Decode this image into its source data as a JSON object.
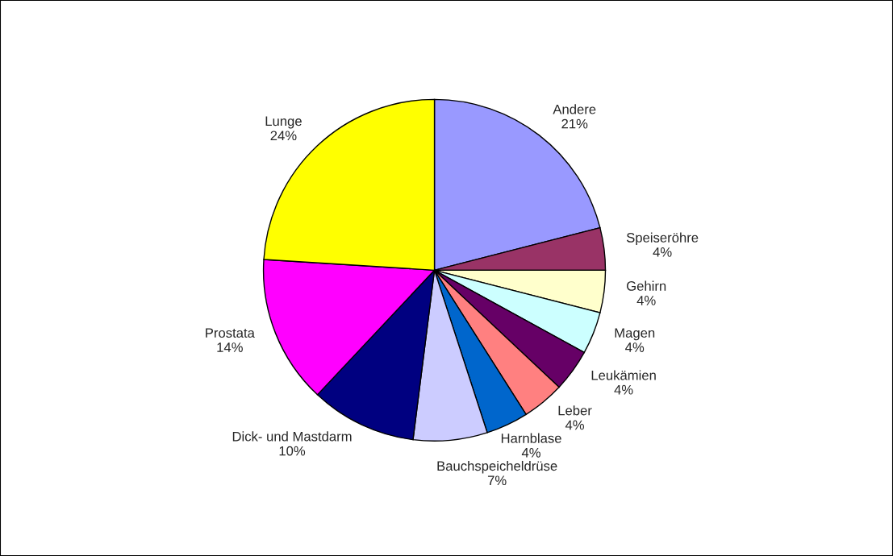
{
  "chart_data": {
    "type": "pie",
    "categories": [
      "Andere",
      "Speiseröhre",
      "Gehirn",
      "Magen",
      "Leukämien",
      "Leber",
      "Harnblase",
      "Bauchspeicheldrüse",
      "Dick- und Mastdarm",
      "Prostata",
      "Lunge"
    ],
    "values": [
      21,
      4,
      4,
      4,
      4,
      4,
      4,
      7,
      10,
      14,
      24
    ],
    "value_labels": [
      "21%",
      "4%",
      "4%",
      "4%",
      "4%",
      "4%",
      "4%",
      "7%",
      "10%",
      "14%",
      "24%"
    ],
    "colors": [
      "#9999ff",
      "#993366",
      "#ffffcc",
      "#ccffff",
      "#660066",
      "#ff8080",
      "#0066cc",
      "#ccccff",
      "#000080",
      "#ff00ff",
      "#ffff00"
    ],
    "legend": false
  }
}
